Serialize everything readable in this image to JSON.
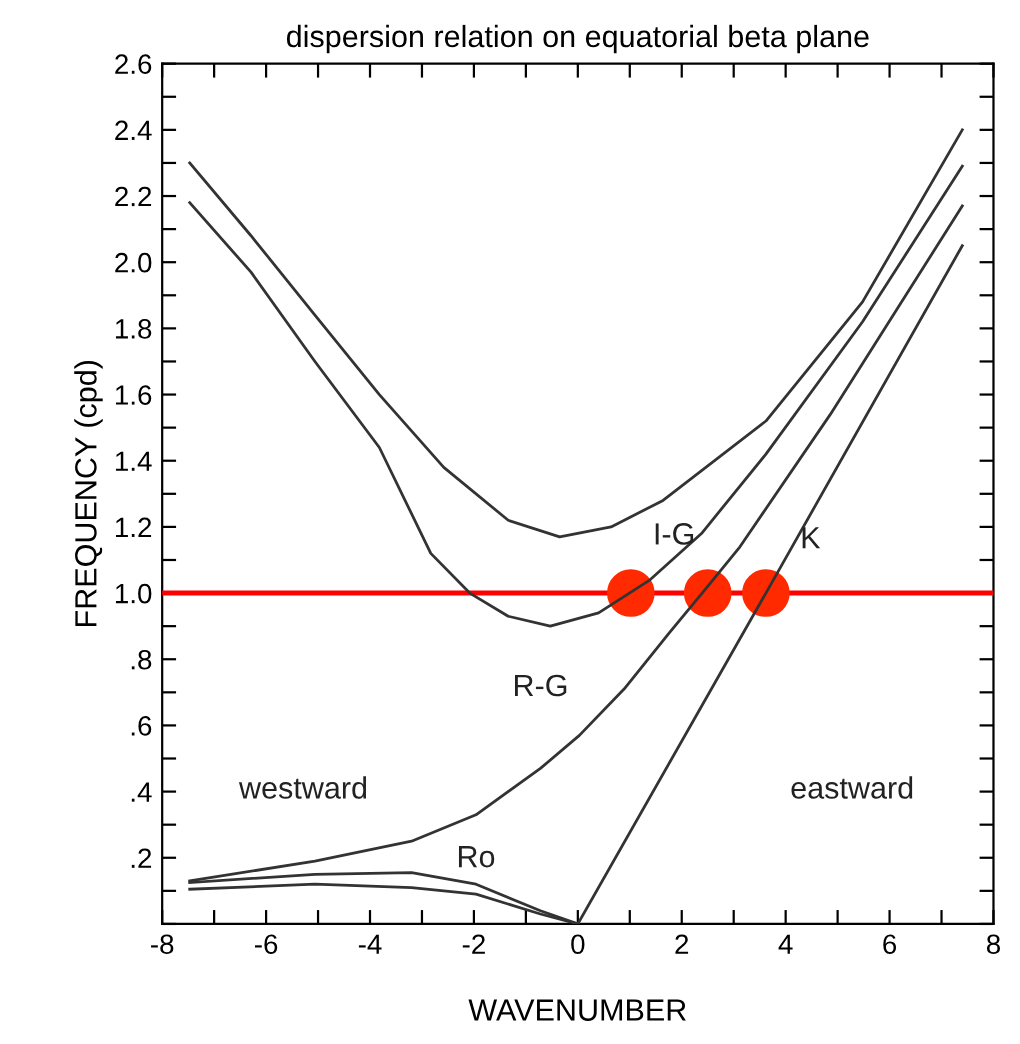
{
  "chart_data": {
    "type": "line",
    "title": "dispersion relation on equatorial beta plane",
    "xlabel": "WAVENUMBER",
    "ylabel": "FREQUENCY (cpd)",
    "xlim": [
      -8,
      8
    ],
    "ylim": [
      0,
      2.6
    ],
    "xticks": [
      -8,
      {
        "value": -7,
        "label": null
      },
      -6,
      {
        "value": -5,
        "label": null
      },
      -4,
      {
        "value": -3,
        "label": null
      },
      -2,
      {
        "value": -1,
        "label": null
      },
      0,
      {
        "value": 1,
        "label": null
      },
      2,
      {
        "value": 3,
        "label": null
      },
      4,
      {
        "value": 5,
        "label": null
      },
      6,
      {
        "value": 7,
        "label": null
      },
      8
    ],
    "yticks": [
      {
        "value": 0,
        "label": null
      },
      {
        "value": 0.1,
        "label": null
      },
      {
        "value": 0.2,
        "label": ".2"
      },
      {
        "value": 0.3,
        "label": null
      },
      {
        "value": 0.4,
        "label": ".4"
      },
      {
        "value": 0.5,
        "label": null
      },
      {
        "value": 0.6,
        "label": ".6"
      },
      {
        "value": 0.7,
        "label": null
      },
      {
        "value": 0.8,
        "label": ".8"
      },
      {
        "value": 0.9,
        "label": null
      },
      {
        "value": 1.0,
        "label": "1.0"
      },
      {
        "value": 1.1,
        "label": null
      },
      {
        "value": 1.2,
        "label": "1.2"
      },
      {
        "value": 1.3,
        "label": null
      },
      {
        "value": 1.4,
        "label": "1.4"
      },
      {
        "value": 1.5,
        "label": null
      },
      {
        "value": 1.6,
        "label": "1.6"
      },
      {
        "value": 1.7,
        "label": null
      },
      {
        "value": 1.8,
        "label": "1.8"
      },
      {
        "value": 1.9,
        "label": null
      },
      {
        "value": 2.0,
        "label": "2.0"
      },
      {
        "value": 2.1,
        "label": null
      },
      {
        "value": 2.2,
        "label": "2.2"
      },
      {
        "value": 2.3,
        "label": null
      },
      {
        "value": 2.4,
        "label": "2.4"
      },
      {
        "value": 2.5,
        "label": null
      },
      {
        "value": 2.6,
        "label": "2.6"
      }
    ],
    "grid": false,
    "legend": false,
    "series": [
      {
        "name": "I-G",
        "color": "#333333",
        "x": [
          -7.47,
          -6.29,
          -5.06,
          -3.82,
          -2.58,
          -1.34,
          -0.35,
          0.64,
          1.64,
          3.62,
          5.48,
          7.4
        ],
        "values": [
          2.3,
          2.08,
          1.84,
          1.6,
          1.38,
          1.22,
          1.17,
          1.2,
          1.28,
          1.52,
          1.88,
          2.4
        ]
      },
      {
        "color": "#333333",
        "x": [
          -7.47,
          -6.29,
          -5.06,
          -3.82,
          -2.83,
          -2.08,
          -1.34,
          -0.53,
          0.4,
          1.39,
          2.38,
          3.62,
          5.48,
          7.4
        ],
        "values": [
          2.18,
          1.97,
          1.7,
          1.44,
          1.12,
          1.0,
          0.93,
          0.9,
          0.94,
          1.04,
          1.18,
          1.42,
          1.82,
          2.29
        ]
      },
      {
        "name": "R-G",
        "color": "#333333",
        "x": [
          -7.47,
          -5.06,
          -3.2,
          -1.96,
          -0.72,
          0.03,
          0.89,
          1.76,
          2.5,
          3.12,
          4.86,
          7.4
        ],
        "values": [
          0.13,
          0.19,
          0.25,
          0.33,
          0.47,
          0.57,
          0.71,
          0.88,
          1.02,
          1.14,
          1.54,
          2.17
        ]
      },
      {
        "name": "K",
        "color": "#333333",
        "x": [
          0,
          3.62,
          7.4
        ],
        "values": [
          0,
          1.0,
          2.05
        ]
      },
      {
        "name": "Ro",
        "color": "#333333",
        "x": [
          -7.47,
          -5.06,
          -3.2,
          -1.96,
          -0.72,
          0
        ],
        "values": [
          0.125,
          0.15,
          0.155,
          0.12,
          0.04,
          0
        ]
      },
      {
        "color": "#333333",
        "x": [
          -7.47,
          -5.06,
          -3.2,
          -1.96,
          -0.72,
          0
        ],
        "values": [
          0.105,
          0.12,
          0.11,
          0.09,
          0.03,
          0
        ]
      },
      {
        "type": "scatter",
        "color": "#ff2a00",
        "x": [
          1.02,
          2.5,
          3.62
        ],
        "values": [
          1.0,
          1.0,
          1.0
        ]
      }
    ],
    "ref_lines": [
      {
        "axis": "y",
        "value": 1.0,
        "color": "#ff0000"
      }
    ],
    "annotations": [
      "westward",
      "eastward"
    ]
  }
}
